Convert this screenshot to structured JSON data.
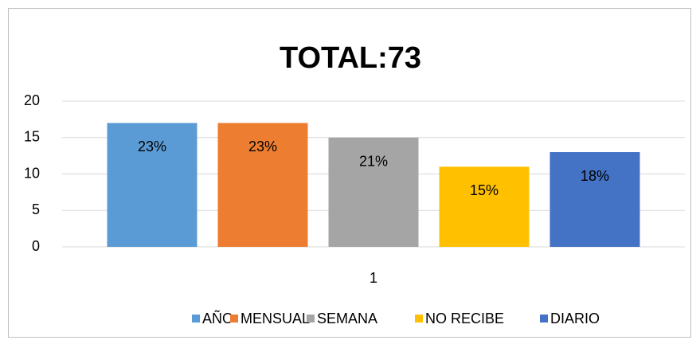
{
  "chart_data": {
    "type": "bar",
    "title": "TOTAL:73",
    "categories": [
      "1"
    ],
    "series": [
      {
        "name": "AÑO",
        "color": "#5b9bd5",
        "values": [
          17
        ],
        "value_labels": [
          "23%"
        ]
      },
      {
        "name": "MENSUAL",
        "color": "#ed7d31",
        "values": [
          17
        ],
        "value_labels": [
          "23%"
        ]
      },
      {
        "name": "SEMANA",
        "color": "#a5a5a5",
        "values": [
          15
        ],
        "value_labels": [
          "21%"
        ]
      },
      {
        "name": "NO RECIBE",
        "color": "#ffc000",
        "values": [
          11
        ],
        "value_labels": [
          "15%"
        ]
      },
      {
        "name": "DIARIO",
        "color": "#4472c4",
        "values": [
          13
        ],
        "value_labels": [
          "18%"
        ]
      }
    ],
    "ylim": [
      0,
      20
    ],
    "yticks": [
      0,
      5,
      10,
      15,
      20
    ],
    "grid": true,
    "legend": "bottom"
  }
}
